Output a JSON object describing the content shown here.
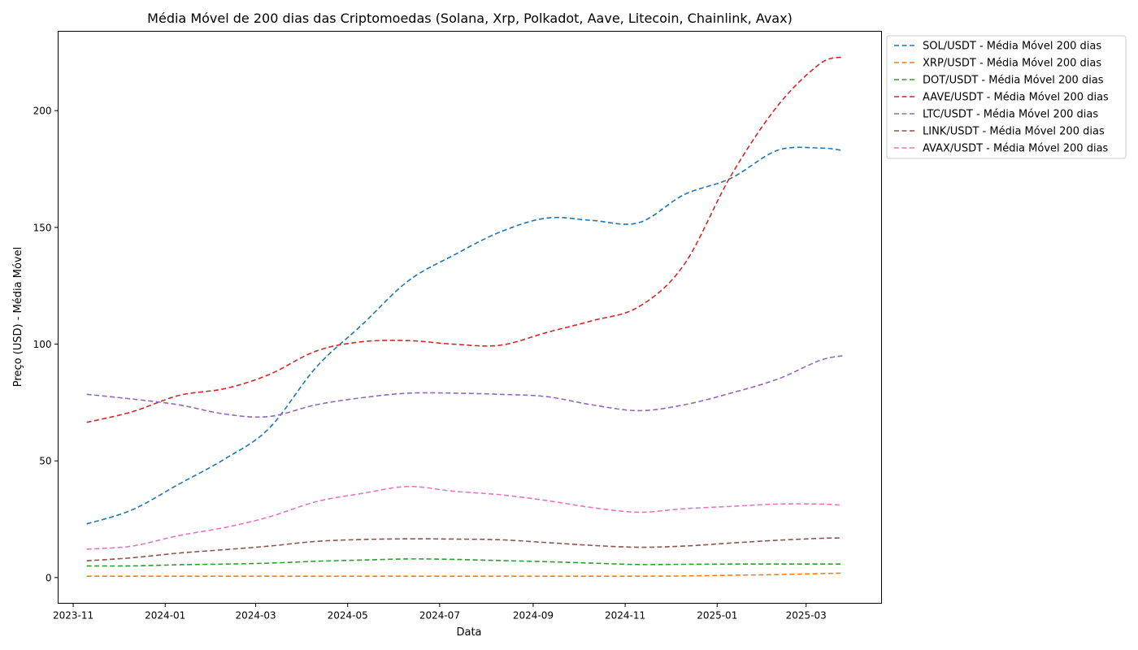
{
  "chart_data": {
    "type": "line",
    "title": "Média Móvel de 200 dias das Criptomoedas (Solana, Xrp, Polkadot, Aave, Litecoin, Chainlink, Avax)",
    "xlabel": "Data",
    "ylabel": "Preço (USD) - Média Móvel",
    "xlim": [
      "2023-10-22",
      "2025-04-20"
    ],
    "ylim": [
      -11,
      234
    ],
    "x_ticks": [
      "2023-11",
      "2024-01",
      "2024-03",
      "2024-05",
      "2024-07",
      "2024-09",
      "2024-11",
      "2025-01",
      "2025-03"
    ],
    "y_ticks": [
      0,
      50,
      100,
      150,
      200
    ],
    "grid": false,
    "legend_position": "outside-top-right",
    "x": [
      "2023-11-10",
      "2023-12-10",
      "2024-01-10",
      "2024-02-10",
      "2024-03-10",
      "2024-04-10",
      "2024-05-10",
      "2024-06-10",
      "2024-07-10",
      "2024-08-10",
      "2024-09-10",
      "2024-10-10",
      "2024-11-10",
      "2024-12-10",
      "2025-01-10",
      "2025-02-10",
      "2025-03-10",
      "2025-03-25"
    ],
    "series": [
      {
        "name": "SOL/USDT - Média Móvel 200 dias",
        "color": "#1f77b4",
        "values": [
          23,
          29,
          40,
          51,
          64,
          90,
          108,
          127,
          138,
          148,
          154,
          153,
          152,
          164,
          171,
          183,
          184,
          183
        ]
      },
      {
        "name": "XRP/USDT - Média Móvel 200 dias",
        "color": "#ff7f0e",
        "values": [
          0.6,
          0.6,
          0.6,
          0.6,
          0.6,
          0.6,
          0.6,
          0.6,
          0.6,
          0.6,
          0.6,
          0.6,
          0.6,
          0.7,
          1.0,
          1.3,
          1.7,
          1.9
        ]
      },
      {
        "name": "DOT/USDT - Média Móvel 200 dias",
        "color": "#2ca02c",
        "values": [
          5,
          5,
          5.5,
          5.8,
          6.2,
          7,
          7.5,
          8,
          7.8,
          7.3,
          6.8,
          6.2,
          5.6,
          5.7,
          5.8,
          5.8,
          5.8,
          5.8
        ]
      },
      {
        "name": "AAVE/USDT - Média Móvel 200 dias",
        "color": "#d62728",
        "values": [
          66.5,
          71,
          78,
          81,
          87,
          97,
          101,
          101.5,
          100,
          99.5,
          105,
          110,
          116,
          134,
          172,
          202,
          220,
          223
        ]
      },
      {
        "name": "LTC/USDT - Média Móvel 200 dias",
        "color": "#9467bd",
        "values": [
          78.5,
          76.5,
          74,
          70,
          69,
          74,
          77,
          79,
          79,
          78.5,
          77.5,
          74,
          71.5,
          74,
          79,
          85,
          93,
          95
        ]
      },
      {
        "name": "LINK/USDT - Média Móvel 200 dias",
        "color": "#8c564b",
        "values": [
          7.2,
          8.5,
          10.5,
          12,
          13.5,
          15.5,
          16.3,
          16.6,
          16.5,
          16.2,
          15,
          13.8,
          13,
          13.5,
          14.8,
          16,
          16.8,
          17
        ]
      },
      {
        "name": "AVAX/USDT - Média Móvel 200 dias",
        "color": "#e377c2",
        "values": [
          12.2,
          13.5,
          18,
          21.5,
          26,
          32.5,
          36,
          39,
          37,
          35.5,
          33,
          30,
          28,
          29.5,
          30.5,
          31.5,
          31.5,
          31
        ]
      }
    ]
  }
}
